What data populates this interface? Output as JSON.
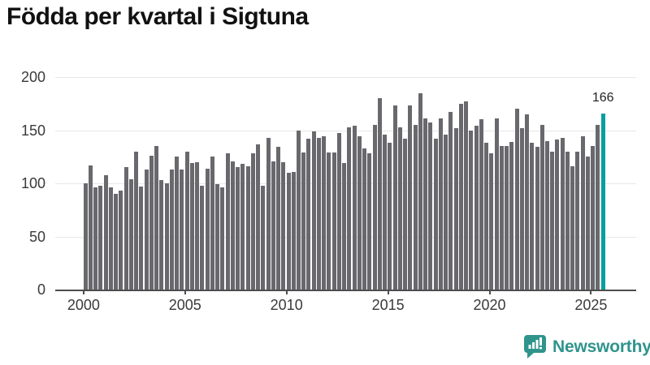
{
  "title": "Födda per kvartal i Sigtuna",
  "annotation": {
    "value_label": "166"
  },
  "logo": {
    "text": "Newsworthy"
  },
  "colors": {
    "bar": "#68686d",
    "highlight": "#089e9e",
    "grid": "#e7e7e7",
    "axis": "#4d4d4d",
    "title_text": "#111111",
    "tick_text": "#3a3a3a",
    "logo_teal": "#2f948c",
    "background": "#ffffff"
  },
  "chart_data": {
    "type": "bar",
    "title": "Födda per kvartal i Sigtuna",
    "ylabel": "",
    "xlabel": "",
    "unit": "födda per kvartal",
    "start_quarter": "2000-Q1",
    "end_quarter": "2025-Q3",
    "x_tick_labels": [
      "2000",
      "2005",
      "2010",
      "2015",
      "2020",
      "2025"
    ],
    "y_ticks": [
      0,
      50,
      100,
      150,
      200
    ],
    "ylim": [
      0,
      200
    ],
    "grid": true,
    "highlight_last": true,
    "highlight_value": 166,
    "values": [
      100,
      117,
      96,
      98,
      108,
      96,
      90,
      93,
      115,
      104,
      130,
      97,
      113,
      126,
      135,
      103,
      100,
      113,
      125,
      113,
      130,
      119,
      120,
      98,
      114,
      125,
      99,
      96,
      128,
      121,
      115,
      118,
      116,
      128,
      137,
      98,
      143,
      121,
      134,
      120,
      110,
      111,
      150,
      129,
      142,
      149,
      143,
      144,
      129,
      129,
      147,
      119,
      153,
      154,
      144,
      133,
      128,
      155,
      180,
      146,
      138,
      173,
      153,
      142,
      173,
      155,
      185,
      161,
      157,
      142,
      161,
      146,
      167,
      152,
      175,
      177,
      150,
      154,
      160,
      138,
      128,
      161,
      135,
      135,
      139,
      170,
      152,
      165,
      138,
      134,
      155,
      140,
      130,
      141,
      143,
      130,
      116,
      130,
      144,
      125,
      135,
      155,
      166
    ]
  }
}
